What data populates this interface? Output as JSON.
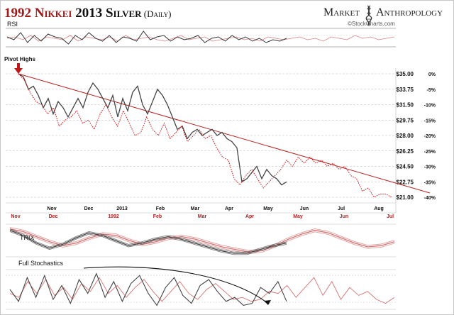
{
  "title": {
    "part1": "1992 ",
    "part2": "Nikkei",
    "part3": " 2013 ",
    "part4": "Silver",
    "part5": " (Daily)",
    "accent_color": "#a01818",
    "text_color": "#111111"
  },
  "brand": {
    "word1": "Market",
    "word2": "Anthropology",
    "source": "©StockCharts.com",
    "icon": "dna-helix-icon"
  },
  "panels": {
    "rsi_label": "RSI",
    "trix_label": "TRIX",
    "stoch_label": "Full Stochastics",
    "pivot_label": "Pivot Highs",
    "pivot_icon": "down-arrow-icon"
  },
  "colors": {
    "silver": "#444444",
    "nikkei": "#cc2020",
    "trendline": "#b82020",
    "grid": "#bbbbbb"
  },
  "chart_data": {
    "type": "line",
    "y_axis_price": [
      "$35.00",
      "$33.75",
      "$31.50",
      "$29.75",
      "$28.00",
      "$26.25",
      "$24.50",
      "$22.75",
      "$21.00"
    ],
    "y_axis_pct": [
      "0%",
      "-5%",
      "-10%",
      "-15%",
      "-20%",
      "-25%",
      "-30%",
      "-35%",
      "-40%"
    ],
    "ylim_pct": [
      -40,
      0
    ],
    "x_axis_silver": [
      "Nov",
      "Dec",
      "2013",
      "Feb",
      "Mar",
      "Apr",
      "May",
      "Jun",
      "Jul",
      "Aug"
    ],
    "x_axis_nikkei": [
      "Nov",
      "Dec",
      "1992",
      "Feb",
      "Mar",
      "Apr",
      "May",
      "Jun",
      "Jul"
    ],
    "series": [
      {
        "style": "solid-dark",
        "values": [
          0,
          -1,
          -5,
          -4,
          -7,
          -11,
          -8,
          -13,
          -9,
          -11,
          -14,
          -11,
          -8,
          -11,
          -6,
          -3,
          -5,
          -8,
          -11,
          -7,
          -14,
          -8,
          -12,
          -6,
          -4,
          -10,
          -13,
          -9,
          -5,
          -7,
          -10,
          -14,
          -18,
          -17,
          -21,
          -19,
          -18,
          -20,
          -19,
          -18,
          -20,
          -19,
          -21,
          -22,
          -24,
          -35,
          -34,
          -32,
          -30,
          -34,
          -31,
          -33,
          -34,
          -36,
          -35
        ]
      },
      {
        "style": "dotted-red",
        "values": [
          0,
          -2,
          -6,
          -9,
          -10,
          -13,
          -11,
          -17,
          -15,
          -14,
          -12,
          -16,
          -15,
          -18,
          -13,
          -10,
          -14,
          -17,
          -12,
          -16,
          -20,
          -19,
          -14,
          -18,
          -20,
          -16,
          -21,
          -19,
          -17,
          -22,
          -20,
          -18,
          -21,
          -20,
          -24,
          -27,
          -28,
          -34,
          -36,
          -33,
          -31,
          -34,
          -37,
          -35,
          -33,
          -31,
          -28,
          -30,
          -27,
          -29,
          -27,
          -29,
          -28,
          -30,
          -29,
          -31,
          -30,
          -33,
          -34,
          -38,
          -37,
          -40,
          -39,
          -39,
          -40
        ]
      }
    ],
    "rsi": {
      "dark": [
        55,
        45,
        70,
        35,
        60,
        40,
        65,
        55,
        50,
        30,
        60,
        45,
        70,
        50,
        40,
        60,
        35,
        55,
        50,
        40,
        75,
        45,
        55,
        60,
        40,
        55,
        45,
        50,
        60,
        35,
        50,
        55,
        40,
        60,
        45,
        55,
        40,
        50,
        35,
        45,
        40,
        50
      ],
      "red": [
        50,
        55,
        45,
        60,
        40,
        55,
        50,
        45,
        60,
        40,
        55,
        50,
        45,
        55,
        40,
        60,
        45,
        50,
        55,
        45,
        40,
        50,
        60,
        45,
        50,
        55,
        40,
        45,
        50,
        55,
        45,
        50,
        40,
        55,
        50,
        45,
        50,
        55,
        45,
        50,
        40,
        55,
        50,
        45,
        60,
        50,
        55,
        45,
        50,
        55
      ]
    },
    "trix": {
      "dark": [
        0.8,
        0.4,
        -0.2,
        -0.6,
        -0.3,
        0.2,
        0.6,
        0.4,
        0.0,
        -0.4,
        -0.2,
        0.1,
        0.3,
        0.1,
        -0.2,
        -0.5,
        -0.8,
        -1.0,
        -1.0,
        -0.7,
        -0.4,
        -0.2
      ],
      "red": [
        0.9,
        0.7,
        0.3,
        -0.1,
        -0.4,
        -0.2,
        0.2,
        0.5,
        0.4,
        0.0,
        -0.3,
        -0.1,
        0.2,
        0.3,
        0.1,
        -0.2,
        -0.5,
        -0.7,
        -0.9,
        -0.8,
        -0.4,
        0.1,
        0.5,
        0.8,
        0.6,
        0.2,
        -0.2,
        -0.5,
        -0.4,
        -0.1
      ]
    },
    "stochastics": {
      "dark": [
        50,
        20,
        80,
        30,
        85,
        25,
        60,
        15,
        75,
        40,
        90,
        30,
        70,
        20,
        65,
        85,
        40,
        10,
        55,
        80,
        35,
        15,
        60,
        75,
        45,
        20,
        30,
        10,
        15,
        55,
        40,
        70,
        20
      ],
      "red": [
        40,
        30,
        70,
        40,
        75,
        35,
        55,
        25,
        65,
        45,
        80,
        40,
        60,
        30,
        55,
        75,
        45,
        20,
        45,
        70,
        40,
        25,
        50,
        65,
        45,
        25,
        30,
        20,
        25,
        45,
        40,
        60,
        30,
        55,
        80,
        35,
        70,
        25,
        55,
        35,
        45,
        25,
        15,
        30
      ]
    }
  }
}
